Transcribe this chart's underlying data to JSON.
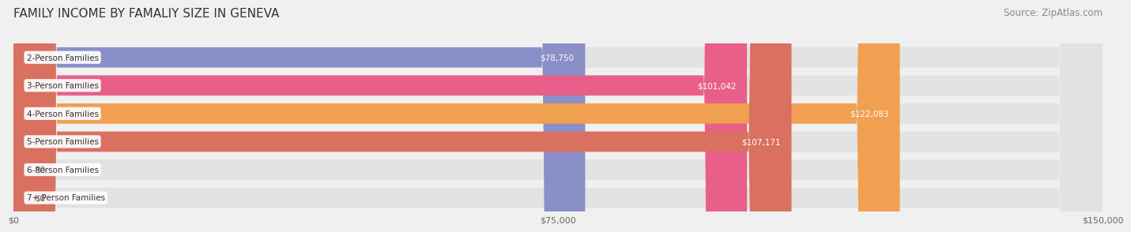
{
  "title": "FAMILY INCOME BY FAMALIY SIZE IN GENEVA",
  "source": "Source: ZipAtlas.com",
  "categories": [
    "2-Person Families",
    "3-Person Families",
    "4-Person Families",
    "5-Person Families",
    "6-Person Families",
    "7+ Person Families"
  ],
  "values": [
    78750,
    101042,
    122083,
    107171,
    0,
    0
  ],
  "bar_colors": [
    "#8B8FC8",
    "#E8608A",
    "#F0A050",
    "#D97060",
    "#A8C0D8",
    "#C0B0D0"
  ],
  "label_values": [
    "$78,750",
    "$101,042",
    "$122,083",
    "$107,171",
    "$0",
    "$0"
  ],
  "xlim": [
    0,
    150000
  ],
  "xticks": [
    0,
    75000,
    150000
  ],
  "xticklabels": [
    "$0",
    "$75,000",
    "$150,000"
  ],
  "background_color": "#f0f0f0",
  "bar_bg_color": "#e2e2e2",
  "title_fontsize": 11,
  "source_fontsize": 8.5
}
